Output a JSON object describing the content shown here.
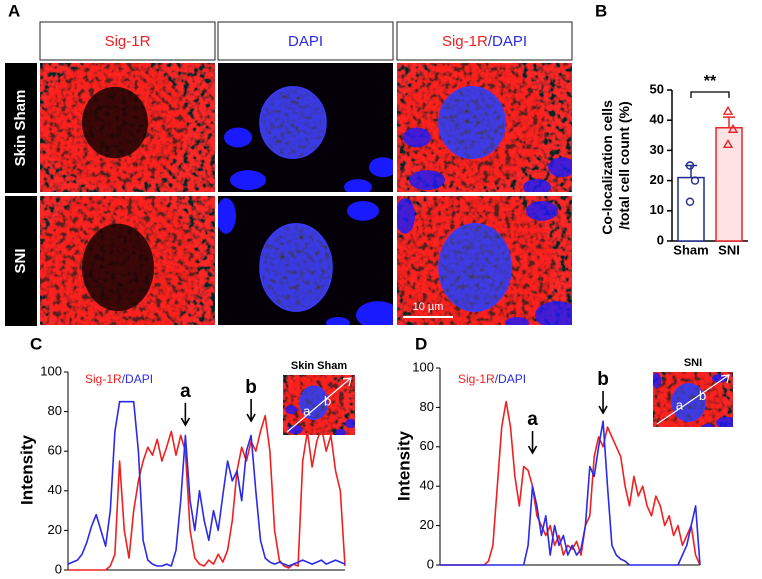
{
  "panel_a": {
    "label": "A",
    "columns": [
      "Sig-1R",
      "DAPI"
    ],
    "merge_separator": "/",
    "rows": [
      "Skin Sham",
      "SNI"
    ],
    "scale_bar": "10 µm"
  },
  "chart_data": [
    {
      "type": "bar",
      "panel_label": "B",
      "ylabel": "Co-localization cells /total cell count (%)",
      "categories": [
        "Sham",
        "SNI"
      ],
      "values": [
        21,
        37.5
      ],
      "errors": [
        4,
        3.5
      ],
      "points": [
        [
          25,
          20,
          13
        ],
        [
          43,
          37,
          32
        ]
      ],
      "colors": [
        "#1f2d8a",
        "#e8262a"
      ],
      "fills": [
        "#ffffff",
        "#fde3e3"
      ],
      "significance": "**",
      "ylim": [
        0,
        50
      ],
      "yticks": [
        0,
        10,
        20,
        30,
        40,
        50
      ]
    },
    {
      "type": "line",
      "panel_label": "C",
      "ylabel": "Intensity",
      "separator": "/",
      "inset_title": "Skin Sham",
      "inset_labels": [
        "a",
        "b"
      ],
      "annotations": [
        "a",
        "b"
      ],
      "ylim": [
        0,
        100
      ],
      "yticks": [
        0,
        20,
        40,
        60,
        80,
        100
      ],
      "series": [
        {
          "name": "Sig-1R",
          "color": "#f02020",
          "values": [
            0,
            0,
            0,
            0,
            0,
            0,
            0,
            0,
            0,
            2,
            8,
            55,
            20,
            6,
            30,
            45,
            55,
            62,
            58,
            66,
            55,
            62,
            70,
            58,
            68,
            60,
            20,
            6,
            3,
            2,
            5,
            3,
            8,
            4,
            10,
            25,
            50,
            62,
            55,
            65,
            60,
            70,
            78,
            60,
            20,
            5,
            2,
            1,
            3,
            2,
            55,
            70,
            52,
            65,
            72,
            60,
            68,
            50,
            40,
            2
          ]
        },
        {
          "name": "DAPI",
          "color": "#2a2ae8",
          "values": [
            3,
            4,
            5,
            8,
            14,
            22,
            28,
            20,
            12,
            30,
            70,
            85,
            85,
            85,
            85,
            60,
            15,
            5,
            3,
            2,
            2,
            3,
            2,
            10,
            35,
            68,
            35,
            20,
            40,
            25,
            15,
            30,
            20,
            38,
            55,
            45,
            50,
            35,
            60,
            68,
            40,
            15,
            6,
            4,
            3,
            4,
            3,
            2,
            3,
            4,
            5,
            4,
            3,
            4,
            5,
            3,
            4,
            5,
            4,
            3
          ]
        }
      ]
    },
    {
      "type": "line",
      "panel_label": "D",
      "ylabel": "Intensity",
      "separator": "/",
      "inset_title": "SNI",
      "inset_labels": [
        "a",
        "b"
      ],
      "annotations": [
        "a",
        "b"
      ],
      "ylim": [
        0,
        100
      ],
      "yticks": [
        0,
        20,
        40,
        60,
        80,
        100
      ],
      "series": [
        {
          "name": "Sig-1R",
          "color": "#f02020",
          "values": [
            0,
            0,
            0,
            0,
            0,
            0,
            0,
            0,
            0,
            0,
            0,
            2,
            10,
            40,
            70,
            83,
            70,
            45,
            30,
            50,
            48,
            40,
            25,
            20,
            15,
            20,
            10,
            15,
            5,
            10,
            8,
            12,
            5,
            20,
            25,
            55,
            65,
            60,
            70,
            65,
            60,
            55,
            40,
            30,
            45,
            35,
            40,
            30,
            25,
            35,
            30,
            20,
            25,
            15,
            20,
            10,
            15,
            20,
            5,
            0
          ]
        },
        {
          "name": "DAPI",
          "color": "#2a2ae8",
          "values": [
            0,
            0,
            0,
            0,
            0,
            0,
            0,
            0,
            0,
            0,
            0,
            0,
            0,
            0,
            0,
            0,
            0,
            0,
            0,
            0,
            10,
            40,
            30,
            15,
            25,
            5,
            20,
            10,
            15,
            5,
            10,
            5,
            8,
            20,
            50,
            45,
            60,
            73,
            40,
            10,
            5,
            3,
            2,
            0,
            0,
            0,
            0,
            0,
            0,
            0,
            0,
            0,
            0,
            0,
            0,
            5,
            10,
            20,
            30,
            0
          ]
        }
      ]
    }
  ]
}
